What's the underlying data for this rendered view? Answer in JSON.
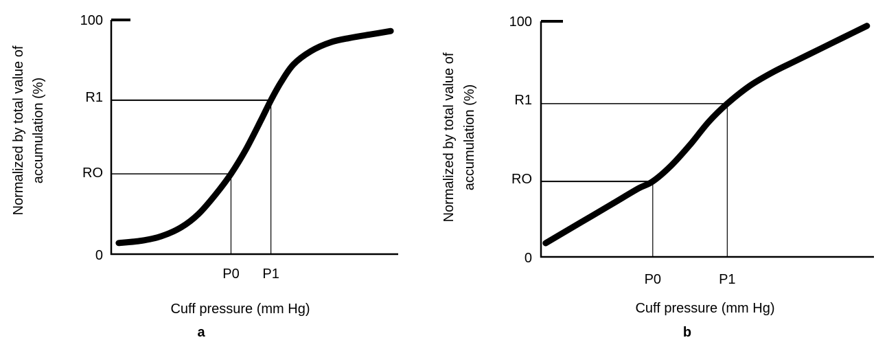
{
  "colors": {
    "ink": "#000000",
    "background": "#ffffff"
  },
  "chart_data": [
    {
      "type": "line",
      "panel_label": "a",
      "xlabel": "Cuff pressure (mm Hg)",
      "ylabel_line1": "Normalized by total value of",
      "ylabel_line2": "accumulation (%)",
      "y_tick_labels": {
        "top": "100",
        "r1": "R1",
        "r0": "RO",
        "zero": "0"
      },
      "x_tick_labels": {
        "p0": "P0",
        "p1": "P1"
      },
      "y_levels": {
        "zero": 0,
        "r0": 36,
        "r1": 69,
        "top": 100
      },
      "x_levels": {
        "p0": 48,
        "p1": 64
      },
      "xlim": [
        0,
        115
      ],
      "ylim": [
        0,
        105
      ],
      "series": [
        {
          "x": [
            3,
            12,
            20,
            28,
            35,
            42,
            48,
            54,
            60,
            64,
            68,
            73,
            80,
            88,
            96,
            104,
            112
          ],
          "y": [
            5,
            6,
            8,
            12,
            18,
            27,
            36,
            47,
            60,
            69,
            77,
            85,
            91,
            95,
            97,
            98.5,
            100
          ]
        }
      ]
    },
    {
      "type": "line",
      "panel_label": "b",
      "xlabel": "Cuff pressure (mm Hg)",
      "ylabel_line1": "Normalized by total value of",
      "ylabel_line2": "accumulation (%)",
      "y_tick_labels": {
        "top": "100",
        "r1": "R1",
        "r0": "RO",
        "zero": "0"
      },
      "x_tick_labels": {
        "p0": "P0",
        "p1": "P1"
      },
      "y_levels": {
        "zero": 0,
        "r0": 33,
        "r1": 67,
        "top": 100
      },
      "x_levels": {
        "p0": 48,
        "p1": 80
      },
      "xlim": [
        0,
        143
      ],
      "ylim": [
        0,
        103
      ],
      "series": [
        {
          "x": [
            2,
            12,
            22,
            32,
            42,
            48,
            56,
            64,
            72,
            80,
            90,
            100,
            110,
            120,
            130,
            140
          ],
          "y": [
            6,
            12,
            18,
            24,
            30,
            33,
            40,
            49,
            59,
            67,
            75,
            81,
            86,
            91,
            96,
            101
          ]
        }
      ]
    }
  ]
}
